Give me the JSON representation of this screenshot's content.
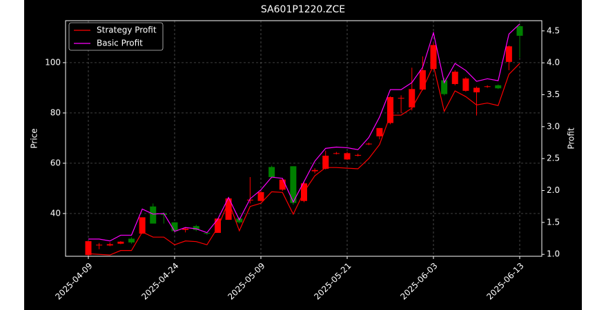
{
  "chart_data": {
    "type": "candlestick",
    "title": "SA601P1220.ZCE",
    "y_label": "Price",
    "y2_label": "Profit",
    "categories": [
      "2025-04-09",
      null,
      null,
      null,
      null,
      null,
      null,
      null,
      "2025-04-24",
      null,
      null,
      null,
      null,
      null,
      null,
      null,
      "2025-05-09",
      null,
      null,
      null,
      null,
      null,
      null,
      null,
      "2025-05-21",
      null,
      null,
      null,
      null,
      null,
      null,
      null,
      "2025-06-03",
      null,
      null,
      null,
      null,
      null,
      null,
      null,
      "2025-06-13"
    ],
    "open": [
      23.5,
      27.3,
      27.3,
      28,
      30,
      32,
      42.8,
      40,
      36.5,
      33.5,
      35,
      32.3,
      32.3,
      37.5,
      38,
      45.2,
      45,
      58.5,
      49.5,
      58.8,
      45,
      56.8,
      57.8,
      63.8,
      61.5,
      63,
      67.5,
      70.7,
      76,
      85.8,
      82.2,
      89.3,
      97.5,
      93,
      91.5,
      88.8,
      88.2,
      90.4,
      91,
      100.3,
      114.5
    ],
    "high": [
      29,
      28.3,
      28.5,
      29,
      30.5,
      38.5,
      44,
      40.5,
      36.5,
      34.5,
      35.5,
      32.5,
      38,
      46.5,
      38.5,
      54.5,
      49,
      59,
      54,
      58.8,
      52.5,
      58,
      65,
      64.5,
      64.5,
      63.8,
      68.2,
      74,
      86.6,
      87,
      98,
      102.5,
      108,
      94,
      97,
      94.2,
      90.5,
      91,
      91.3,
      106.8,
      115.5
    ],
    "low": [
      23,
      25.8,
      27,
      27.8,
      28,
      32,
      36,
      36,
      33,
      32.5,
      33,
      31.5,
      32.3,
      37.5,
      36,
      44,
      44.8,
      54,
      49,
      43.5,
      44.5,
      56,
      57.5,
      63.5,
      61.3,
      62.7,
      67.2,
      69.5,
      75.5,
      80,
      81,
      89,
      97,
      87,
      91,
      88.5,
      79,
      90,
      89.5,
      97,
      102
    ],
    "close": [
      29,
      27.6,
      27.8,
      28.8,
      28.5,
      38.5,
      36,
      39.5,
      33,
      34,
      33.5,
      32,
      38,
      46,
      36.5,
      45.5,
      48.5,
      54.5,
      53.5,
      44.2,
      52,
      57.3,
      63,
      64,
      64,
      63.3,
      67.8,
      74,
      86.3,
      86,
      89.5,
      97,
      107,
      87.5,
      96.4,
      93.7,
      90,
      90.6,
      89.8,
      106.5,
      110.7
    ],
    "up_color": "#ff0000",
    "down_color": "#008000",
    "series": [
      {
        "name": "Strategy Profit",
        "color": "#ff0000",
        "axis": "y2",
        "values": [
          1.01,
          1.0,
          0.99,
          1.06,
          1.06,
          1.35,
          1.27,
          1.27,
          1.15,
          1.21,
          1.2,
          1.15,
          1.42,
          1.83,
          1.37,
          1.75,
          1.8,
          1.98,
          1.97,
          1.63,
          1.98,
          2.23,
          2.36,
          2.36,
          2.35,
          2.34,
          2.5,
          2.72,
          3.18,
          3.18,
          3.29,
          3.59,
          3.96,
          3.24,
          3.56,
          3.47,
          3.34,
          3.37,
          3.33,
          3.82,
          3.99
        ]
      },
      {
        "name": "Basic Profit",
        "color": "#ff00ff",
        "axis": "y2",
        "values": [
          1.24,
          1.24,
          1.21,
          1.3,
          1.3,
          1.71,
          1.63,
          1.64,
          1.36,
          1.42,
          1.4,
          1.34,
          1.55,
          1.89,
          1.54,
          1.87,
          2.01,
          2.21,
          2.19,
          1.82,
          2.14,
          2.46,
          2.66,
          2.68,
          2.67,
          2.64,
          2.83,
          3.15,
          3.58,
          3.58,
          3.69,
          3.93,
          4.47,
          3.69,
          3.99,
          3.88,
          3.71,
          3.75,
          3.72,
          4.45,
          4.61
        ]
      }
    ],
    "ylim": [
      23,
      116.7
    ],
    "yticks": [
      40,
      60,
      80,
      100
    ],
    "y2lim": [
      0.97,
      4.66
    ],
    "y2ticks": [
      {
        "value": 1,
        "label": "1.0"
      },
      1.5,
      {
        "value": 2,
        "label": "2.0"
      },
      2.5,
      {
        "value": 3,
        "label": "3.0"
      },
      3.5,
      {
        "value": 4,
        "label": "4.0"
      },
      4.5
    ],
    "grid": true,
    "legend": "upper left"
  }
}
